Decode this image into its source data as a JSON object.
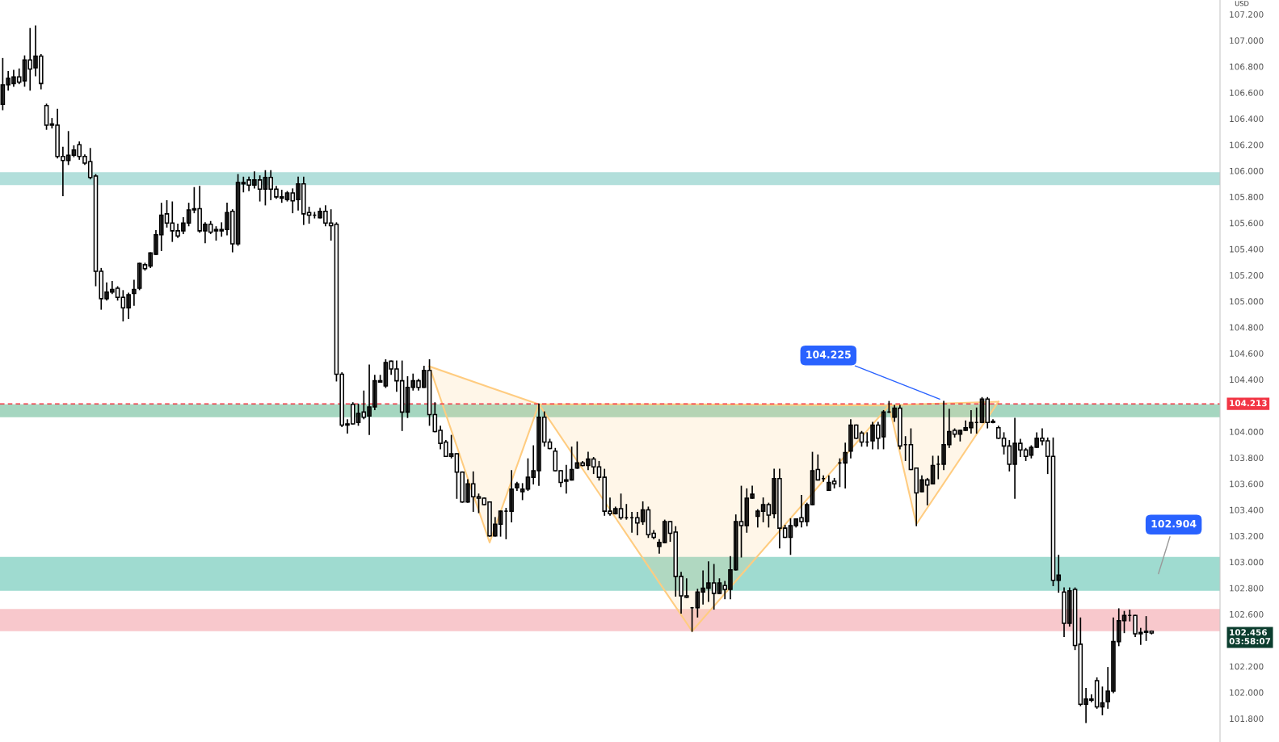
{
  "chart_data": {
    "type": "candlestick",
    "color": "#000000",
    "categories": [
      null,
      null,
      null,
      null,
      null,
      null,
      null,
      null,
      null,
      null,
      null,
      null,
      null,
      null,
      null,
      null,
      null,
      null,
      null,
      null,
      null,
      null,
      null,
      null,
      null,
      null,
      null,
      null,
      null,
      null,
      null,
      null,
      null,
      null,
      null,
      null,
      null,
      null,
      null,
      null,
      null,
      null,
      null,
      null,
      null,
      null,
      null,
      null,
      null,
      null,
      null,
      null,
      null,
      null,
      null,
      null,
      null,
      null,
      null,
      null,
      null,
      null,
      null,
      null,
      null,
      null,
      null,
      null,
      null,
      null,
      null,
      null,
      null,
      null,
      null,
      null,
      null,
      null,
      null,
      null,
      null,
      null,
      null,
      null,
      null,
      null,
      null,
      null,
      null,
      null,
      null,
      null,
      null,
      null,
      null,
      null,
      null,
      null,
      null,
      null,
      null,
      null,
      null,
      null,
      null,
      null,
      null,
      null,
      null,
      null,
      null,
      null,
      null,
      null,
      null,
      null,
      null,
      null,
      null,
      null,
      null,
      null,
      null,
      null,
      null,
      null,
      null,
      null,
      null,
      null,
      null,
      null,
      null,
      null,
      null,
      null,
      null,
      null,
      null,
      null,
      null,
      null,
      null,
      null,
      null,
      null,
      null,
      null,
      null,
      null,
      null,
      null,
      null,
      null,
      null,
      null,
      null,
      null,
      null,
      null,
      null,
      null,
      null,
      null,
      null,
      null,
      null,
      null,
      null,
      null,
      null,
      null,
      null,
      null,
      null,
      null,
      null,
      null,
      null,
      null,
      null,
      null,
      null,
      null,
      null,
      null,
      null,
      null,
      null,
      null,
      null,
      null,
      null,
      null,
      null,
      null,
      null,
      null,
      null,
      null,
      null,
      null,
      null,
      null,
      null,
      null,
      null,
      null,
      null,
      null,
      null,
      null,
      null,
      null,
      null,
      null,
      null,
      null,
      null,
      null,
      null,
      null,
      null
    ],
    "ohlc": [
      [
        106.51,
        106.86,
        106.47,
        106.66
      ],
      [
        106.66,
        106.76,
        106.62,
        106.71
      ],
      [
        106.67,
        106.77,
        106.65,
        106.72
      ],
      [
        106.72,
        106.78,
        106.67,
        106.68
      ],
      [
        106.69,
        106.88,
        106.65,
        106.85
      ],
      [
        106.85,
        107.09,
        106.62,
        106.78
      ],
      [
        106.79,
        107.11,
        106.73,
        106.88
      ],
      [
        106.88,
        106.89,
        106.63,
        106.67
      ],
      [
        106.5,
        106.51,
        106.32,
        106.35
      ],
      [
        106.36,
        106.4,
        106.33,
        106.35
      ],
      [
        106.35,
        106.47,
        106.1,
        106.11
      ],
      [
        106.11,
        106.18,
        105.81,
        106.08
      ],
      [
        106.08,
        106.3,
        106.05,
        106.12
      ],
      [
        106.12,
        106.19,
        106.11,
        106.16
      ],
      [
        106.2,
        106.22,
        106.09,
        106.11
      ],
      [
        106.11,
        106.12,
        106.05,
        106.06
      ],
      [
        106.07,
        106.17,
        105.94,
        105.95
      ],
      [
        105.96,
        105.97,
        105.12,
        105.23
      ],
      [
        105.23,
        105.25,
        104.94,
        105.02
      ],
      [
        105.02,
        105.14,
        105.01,
        105.07
      ],
      [
        105.07,
        105.15,
        105.06,
        105.09
      ],
      [
        105.1,
        105.11,
        105.01,
        105.03
      ],
      [
        105.03,
        105.08,
        104.85,
        104.95
      ],
      [
        104.95,
        105.06,
        104.87,
        105.05
      ],
      [
        105.06,
        105.16,
        104.97,
        105.09
      ],
      [
        105.1,
        105.29,
        105.09,
        105.29
      ],
      [
        105.28,
        105.29,
        105.24,
        105.25
      ],
      [
        105.27,
        105.37,
        105.26,
        105.37
      ],
      [
        105.36,
        105.54,
        105.36,
        105.51
      ],
      [
        105.51,
        105.75,
        105.39,
        105.66
      ],
      [
        105.67,
        105.77,
        105.57,
        105.6
      ],
      [
        105.6,
        105.76,
        105.46,
        105.54
      ],
      [
        105.54,
        105.59,
        105.49,
        105.5
      ],
      [
        105.54,
        105.64,
        105.52,
        105.6
      ],
      [
        105.6,
        105.75,
        105.58,
        105.7
      ],
      [
        105.7,
        105.87,
        105.68,
        105.71
      ],
      [
        105.71,
        105.88,
        105.53,
        105.54
      ],
      [
        105.54,
        105.6,
        105.45,
        105.59
      ],
      [
        105.59,
        105.61,
        105.52,
        105.53
      ],
      [
        105.55,
        105.57,
        105.47,
        105.54
      ],
      [
        105.54,
        105.6,
        105.5,
        105.55
      ],
      [
        105.55,
        105.75,
        105.51,
        105.68
      ],
      [
        105.69,
        105.7,
        105.38,
        105.44
      ],
      [
        105.44,
        105.97,
        105.43,
        105.91
      ],
      [
        105.91,
        105.95,
        105.84,
        105.9
      ],
      [
        105.93,
        105.95,
        105.85,
        105.89
      ],
      [
        105.89,
        105.99,
        105.87,
        105.93
      ],
      [
        105.93,
        105.96,
        105.77,
        105.86
      ],
      [
        105.86,
        106.0,
        105.74,
        105.95
      ],
      [
        105.95,
        106.0,
        105.78,
        105.86
      ],
      [
        105.86,
        105.88,
        105.79,
        105.8
      ],
      [
        105.8,
        105.85,
        105.76,
        105.79
      ],
      [
        105.78,
        105.84,
        105.77,
        105.83
      ],
      [
        105.83,
        105.86,
        105.68,
        105.77
      ],
      [
        105.78,
        105.95,
        105.7,
        105.9
      ],
      [
        105.9,
        105.95,
        105.59,
        105.67
      ],
      [
        105.68,
        105.72,
        105.6,
        105.66
      ],
      [
        105.66,
        105.68,
        105.64,
        105.66
      ],
      [
        105.64,
        105.71,
        105.64,
        105.69
      ],
      [
        105.69,
        105.73,
        105.58,
        105.6
      ],
      [
        105.6,
        105.7,
        105.47,
        105.58
      ],
      [
        105.59,
        105.6,
        104.39,
        104.44
      ],
      [
        104.44,
        104.45,
        104.04,
        104.05
      ],
      [
        104.05,
        104.09,
        103.99,
        104.06
      ],
      [
        104.21,
        104.22,
        104.06,
        104.06
      ],
      [
        104.07,
        104.21,
        104.05,
        104.14
      ],
      [
        104.15,
        104.31,
        104.1,
        104.11
      ],
      [
        104.12,
        104.51,
        103.98,
        104.19
      ],
      [
        104.19,
        104.43,
        104.17,
        104.39
      ],
      [
        104.39,
        104.43,
        104.38,
        104.38
      ],
      [
        104.35,
        104.55,
        104.34,
        104.53
      ],
      [
        104.54,
        104.54,
        104.44,
        104.48
      ],
      [
        104.48,
        104.54,
        104.31,
        104.39
      ],
      [
        104.39,
        104.54,
        104.01,
        104.15
      ],
      [
        104.15,
        104.42,
        104.11,
        104.34
      ],
      [
        104.34,
        104.44,
        104.32,
        104.39
      ],
      [
        104.39,
        104.4,
        104.32,
        104.34
      ],
      [
        104.34,
        104.5,
        104.34,
        104.47
      ],
      [
        104.47,
        104.55,
        104.05,
        104.13
      ],
      [
        104.13,
        104.22,
        104.0,
        104.0
      ],
      [
        104.01,
        104.04,
        103.87,
        103.91
      ],
      [
        103.92,
        103.93,
        103.81,
        103.81
      ],
      [
        103.81,
        103.97,
        103.8,
        103.83
      ],
      [
        103.83,
        103.83,
        103.49,
        103.69
      ],
      [
        103.69,
        103.69,
        103.46,
        103.46
      ],
      [
        103.46,
        103.63,
        103.46,
        103.6
      ],
      [
        103.6,
        103.69,
        103.39,
        103.5
      ],
      [
        103.5,
        103.52,
        103.38,
        103.49
      ],
      [
        103.49,
        103.49,
        103.44,
        103.44
      ],
      [
        103.46,
        103.46,
        103.2,
        103.2
      ],
      [
        103.2,
        103.34,
        103.2,
        103.29
      ],
      [
        103.29,
        103.39,
        103.2,
        103.39
      ],
      [
        103.39,
        103.41,
        103.18,
        103.39
      ],
      [
        103.39,
        103.7,
        103.31,
        103.56
      ],
      [
        103.57,
        103.61,
        103.55,
        103.6
      ],
      [
        103.54,
        103.6,
        103.48,
        103.56
      ],
      [
        103.56,
        103.79,
        103.55,
        103.65
      ],
      [
        103.65,
        103.89,
        103.6,
        103.7
      ],
      [
        103.7,
        104.21,
        103.59,
        104.11
      ],
      [
        104.11,
        104.15,
        103.89,
        103.92
      ],
      [
        103.92,
        103.94,
        103.87,
        103.87
      ],
      [
        103.85,
        103.87,
        103.7,
        103.7
      ],
      [
        103.7,
        103.7,
        103.58,
        103.61
      ],
      [
        103.62,
        103.74,
        103.53,
        103.63
      ],
      [
        103.63,
        103.88,
        103.63,
        103.71
      ],
      [
        103.72,
        103.92,
        103.72,
        103.76
      ],
      [
        103.76,
        103.77,
        103.74,
        103.74
      ],
      [
        103.74,
        103.84,
        103.71,
        103.79
      ],
      [
        103.79,
        103.8,
        103.68,
        103.73
      ],
      [
        103.73,
        103.77,
        103.63,
        103.65
      ],
      [
        103.65,
        103.71,
        103.36,
        103.39
      ],
      [
        103.39,
        103.49,
        103.36,
        103.37
      ],
      [
        103.37,
        103.42,
        103.37,
        103.41
      ],
      [
        103.41,
        103.52,
        103.33,
        103.34
      ],
      [
        103.34,
        103.44,
        103.33,
        103.34
      ],
      [
        103.34,
        103.38,
        103.23,
        103.34
      ],
      [
        103.34,
        103.38,
        103.21,
        103.3
      ],
      [
        103.31,
        103.46,
        103.29,
        103.4
      ],
      [
        103.4,
        103.42,
        103.19,
        103.21
      ],
      [
        103.22,
        103.24,
        103.18,
        103.19
      ],
      [
        103.12,
        103.17,
        103.07,
        103.15
      ],
      [
        103.15,
        103.32,
        103.15,
        103.31
      ],
      [
        103.31,
        103.31,
        103.16,
        103.22
      ],
      [
        103.23,
        103.27,
        102.74,
        102.89
      ],
      [
        102.89,
        102.92,
        102.61,
        102.74
      ],
      [
        102.74,
        102.87,
        102.73,
        102.73
      ],
      [
        102.65,
        102.65,
        102.47,
        102.65
      ],
      [
        102.65,
        102.79,
        102.58,
        102.77
      ],
      [
        102.77,
        102.93,
        102.68,
        102.8
      ],
      [
        102.8,
        103.0,
        102.7,
        102.84
      ],
      [
        102.84,
        102.98,
        102.64,
        102.76
      ],
      [
        102.76,
        102.87,
        102.76,
        102.84
      ],
      [
        102.82,
        102.85,
        102.72,
        102.79
      ],
      [
        102.79,
        103.04,
        102.72,
        102.94
      ],
      [
        102.94,
        103.36,
        102.94,
        103.31
      ],
      [
        103.31,
        103.58,
        103.04,
        103.28
      ],
      [
        103.28,
        103.56,
        103.23,
        103.49
      ],
      [
        103.49,
        103.58,
        103.49,
        103.52
      ],
      [
        103.35,
        103.4,
        103.27,
        103.39
      ],
      [
        103.39,
        103.49,
        103.31,
        103.44
      ],
      [
        103.44,
        103.45,
        103.27,
        103.36
      ],
      [
        103.37,
        103.71,
        103.34,
        103.64
      ],
      [
        103.64,
        103.71,
        103.11,
        103.26
      ],
      [
        103.26,
        103.28,
        103.19,
        103.19
      ],
      [
        103.19,
        103.33,
        103.06,
        103.28
      ],
      [
        103.28,
        103.33,
        103.27,
        103.33
      ],
      [
        103.34,
        103.51,
        103.27,
        103.31
      ],
      [
        103.31,
        103.45,
        103.28,
        103.44
      ],
      [
        103.44,
        103.84,
        103.44,
        103.7
      ],
      [
        103.71,
        103.82,
        103.63,
        103.63
      ],
      [
        103.64,
        103.66,
        103.62,
        103.64
      ],
      [
        103.55,
        103.66,
        103.55,
        103.61
      ],
      [
        103.62,
        103.64,
        103.57,
        103.6
      ],
      [
        103.76,
        103.79,
        103.58,
        103.76
      ],
      [
        103.76,
        103.91,
        103.57,
        103.84
      ],
      [
        103.85,
        104.09,
        103.8,
        104.05
      ],
      [
        104.05,
        104.05,
        103.95,
        103.95
      ],
      [
        103.99,
        104.0,
        103.89,
        103.92
      ],
      [
        103.92,
        103.99,
        103.89,
        103.92
      ],
      [
        103.93,
        104.07,
        103.87,
        104.05
      ],
      [
        104.05,
        104.07,
        103.87,
        103.95
      ],
      [
        103.96,
        104.16,
        103.87,
        104.15
      ],
      [
        104.15,
        104.23,
        104.15,
        104.15
      ],
      [
        104.11,
        104.2,
        104.08,
        104.18
      ],
      [
        104.18,
        104.2,
        103.87,
        103.89
      ],
      [
        103.9,
        103.96,
        103.78,
        103.9
      ],
      [
        103.9,
        104.02,
        103.71,
        103.71
      ],
      [
        103.72,
        103.72,
        103.28,
        103.53
      ],
      [
        103.54,
        103.66,
        103.54,
        103.63
      ],
      [
        103.63,
        103.64,
        103.44,
        103.59
      ],
      [
        103.6,
        103.81,
        103.6,
        103.74
      ],
      [
        103.75,
        103.81,
        103.64,
        103.75
      ],
      [
        103.75,
        104.23,
        103.71,
        103.9
      ],
      [
        103.9,
        104.17,
        103.88,
        104.0
      ],
      [
        104.01,
        104.02,
        103.96,
        103.98
      ],
      [
        103.98,
        104.01,
        103.93,
        104.01
      ],
      [
        104.01,
        104.08,
        104.01,
        104.03
      ],
      [
        104.03,
        104.16,
        103.99,
        104.07
      ],
      [
        104.07,
        104.18,
        103.99,
        104.07
      ],
      [
        104.07,
        104.26,
        104.07,
        104.25
      ],
      [
        104.25,
        104.26,
        104.03,
        104.07
      ],
      [
        104.07,
        104.09,
        104.07,
        104.08
      ],
      [
        104.03,
        104.04,
        103.95,
        103.95
      ],
      [
        103.95,
        103.99,
        103.83,
        103.89
      ],
      [
        103.89,
        103.93,
        103.7,
        103.75
      ],
      [
        103.75,
        104.1,
        103.49,
        103.91
      ],
      [
        103.91,
        103.94,
        103.81,
        103.86
      ],
      [
        103.86,
        103.87,
        103.78,
        103.81
      ],
      [
        103.82,
        103.89,
        103.8,
        103.88
      ],
      [
        103.88,
        103.99,
        103.88,
        103.95
      ],
      [
        103.95,
        104.02,
        103.9,
        103.93
      ],
      [
        103.93,
        103.95,
        103.68,
        103.81
      ],
      [
        103.81,
        103.95,
        102.82,
        102.86
      ],
      [
        102.86,
        103.05,
        102.77,
        102.9
      ],
      [
        102.77,
        102.8,
        102.43,
        102.53
      ],
      [
        102.53,
        102.8,
        102.51,
        102.78
      ],
      [
        102.79,
        102.8,
        102.33,
        102.36
      ],
      [
        102.37,
        102.57,
        101.9,
        101.91
      ],
      [
        101.91,
        102.03,
        101.77,
        101.95
      ],
      [
        101.95,
        101.98,
        101.93,
        101.94
      ],
      [
        102.09,
        102.11,
        101.88,
        101.89
      ],
      [
        101.89,
        102.04,
        101.83,
        101.92
      ],
      [
        101.93,
        102.19,
        101.88,
        102.01
      ],
      [
        102.01,
        102.57,
        102.0,
        102.39
      ],
      [
        102.39,
        102.64,
        102.36,
        102.55
      ],
      [
        102.55,
        102.62,
        102.46,
        102.59
      ],
      [
        102.59,
        102.63,
        102.55,
        102.59
      ],
      [
        102.59,
        102.59,
        102.43,
        102.45
      ],
      [
        102.45,
        102.49,
        102.37,
        102.46
      ],
      [
        102.47,
        102.58,
        102.4,
        102.46
      ],
      [
        102.47,
        102.47,
        102.45,
        102.456
      ],
      null,
      null,
      null,
      null,
      null,
      null,
      null,
      null,
      null,
      null,
      null,
      null
    ],
    "series": [
      {
        "type": "line",
        "color": "#ffcc80",
        "values": [
          null,
          null,
          null,
          null,
          null,
          null,
          null,
          null,
          null,
          null,
          null,
          null,
          null,
          null,
          null,
          null,
          null,
          null,
          null,
          null,
          null,
          null,
          null,
          null,
          null,
          null,
          null,
          null,
          null,
          null,
          null,
          null,
          null,
          null,
          null,
          null,
          null,
          null,
          null,
          null,
          null,
          null,
          null,
          null,
          null,
          null,
          null,
          null,
          null,
          null,
          null,
          null,
          null,
          null,
          null,
          null,
          null,
          null,
          null,
          null,
          null,
          null,
          null,
          null,
          null,
          null,
          null,
          null,
          null,
          null,
          null,
          null,
          null,
          null,
          null,
          null,
          null,
          null,
          104.5,
          null,
          null,
          null,
          null,
          null,
          null,
          null,
          null,
          null,
          null,
          103.15,
          null,
          null,
          null,
          null,
          null,
          null,
          null,
          null,
          104.21,
          null,
          null,
          null,
          null,
          null,
          null,
          null,
          null,
          null,
          null,
          null,
          null,
          null,
          null,
          null,
          null,
          null,
          null,
          null,
          null,
          null,
          null,
          null,
          null,
          null,
          null,
          null,
          102.47,
          null,
          null,
          null,
          null,
          null,
          null,
          null,
          null,
          null,
          null,
          null,
          null,
          null,
          null,
          null,
          null,
          null,
          null,
          null,
          null,
          null,
          null,
          null,
          null,
          null,
          null,
          null,
          null,
          null,
          null,
          null,
          null,
          null,
          null,
          null,
          104.2,
          null,
          null,
          null,
          null,
          103.29,
          null,
          null,
          null,
          null,
          null,
          null,
          null,
          null,
          null,
          null,
          null,
          null,
          null,
          null,
          104.23,
          null,
          null,
          null,
          null,
          null,
          null,
          null,
          null,
          null,
          null,
          null,
          null,
          null,
          null,
          null,
          null,
          null,
          null,
          null,
          null,
          null,
          null,
          null,
          null,
          null,
          null,
          null,
          null,
          null,
          null,
          null,
          null,
          null,
          null,
          null,
          null,
          null,
          null,
          null,
          null
        ],
        "lower": [
          null,
          null,
          null,
          null,
          null,
          null,
          null,
          null,
          null,
          null,
          null,
          null,
          null,
          null,
          null,
          null,
          null,
          null,
          null,
          null,
          null,
          null,
          null,
          null,
          null,
          null,
          null,
          null,
          null,
          null,
          null,
          null,
          null,
          null,
          null,
          null,
          null,
          null,
          null,
          null,
          null,
          null,
          null,
          null,
          null,
          null,
          null,
          null,
          null,
          null,
          null,
          null,
          null,
          null,
          null,
          null,
          null,
          null,
          null,
          null,
          null,
          null,
          null,
          null,
          null,
          null,
          null,
          null,
          null,
          null,
          null,
          null,
          null,
          null,
          null,
          null,
          null,
          null,
          104.5,
          null,
          null,
          null,
          null,
          null,
          null,
          null,
          null,
          null,
          null,
          103.15,
          null,
          null,
          null,
          null,
          null,
          null,
          null,
          null,
          104.21,
          null,
          null,
          null,
          null,
          null,
          null,
          null,
          null,
          null,
          null,
          null,
          null,
          null,
          null,
          null,
          null,
          null,
          null,
          null,
          null,
          null,
          null,
          null,
          null,
          null,
          null,
          null,
          102.47,
          null,
          null,
          null,
          null,
          null,
          null,
          null,
          null,
          null,
          null,
          null,
          null,
          null,
          null,
          null,
          null,
          null,
          null,
          null,
          null,
          null,
          null,
          null,
          null,
          null,
          null,
          null,
          null,
          null,
          null,
          null,
          null,
          null,
          null,
          null,
          104.2,
          null,
          null,
          null,
          null,
          103.29,
          null,
          null,
          null,
          null,
          null,
          null,
          null,
          null,
          null,
          null,
          null,
          null,
          null,
          null,
          104.23,
          null,
          null,
          null,
          null,
          null,
          null,
          null,
          null,
          null,
          null,
          null,
          null,
          null,
          null,
          null,
          null,
          null,
          null,
          null,
          null,
          null,
          null,
          null,
          null,
          null,
          null,
          null,
          null,
          null,
          null,
          null,
          null,
          null,
          null,
          null,
          null,
          null,
          null,
          null,
          null
        ],
        "upper": [
          null,
          null,
          null,
          null,
          null,
          null,
          null,
          null,
          null,
          null,
          null,
          null,
          null,
          null,
          null,
          null,
          null,
          null,
          null,
          null,
          null,
          null,
          null,
          null,
          null,
          null,
          null,
          null,
          null,
          null,
          null,
          null,
          null,
          null,
          null,
          null,
          null,
          null,
          null,
          null,
          null,
          null,
          null,
          null,
          null,
          null,
          null,
          null,
          null,
          null,
          null,
          null,
          null,
          null,
          null,
          null,
          null,
          null,
          null,
          null,
          null,
          null,
          null,
          null,
          null,
          null,
          null,
          null,
          null,
          null,
          null,
          null,
          null,
          null,
          null,
          null,
          null,
          null,
          104.5,
          null,
          null,
          null,
          null,
          null,
          null,
          null,
          null,
          null,
          null,
          104.34,
          null,
          null,
          null,
          null,
          null,
          null,
          null,
          null,
          104.21,
          null,
          null,
          null,
          null,
          null,
          null,
          null,
          null,
          null,
          null,
          null,
          null,
          null,
          null,
          null,
          null,
          null,
          null,
          null,
          null,
          null,
          null,
          null,
          null,
          null,
          null,
          null,
          104.21,
          null,
          null,
          null,
          null,
          null,
          null,
          null,
          null,
          null,
          null,
          null,
          null,
          null,
          null,
          null,
          null,
          null,
          null,
          null,
          null,
          null,
          null,
          null,
          null,
          null,
          null,
          null,
          null,
          null,
          null,
          null,
          null,
          null,
          null,
          null,
          104.2,
          null,
          null,
          null,
          null,
          104.21,
          null,
          null,
          null,
          null,
          null,
          null,
          null,
          null,
          null,
          null,
          null,
          null,
          null,
          null,
          104.23,
          null,
          null,
          null,
          null,
          null,
          null,
          null,
          null,
          null,
          null,
          null,
          null,
          null,
          null,
          null,
          null,
          null,
          null,
          null,
          null,
          null,
          null,
          null,
          null,
          null,
          null,
          null,
          null,
          null,
          null,
          null,
          null,
          null,
          null,
          null,
          null,
          null,
          null,
          null,
          null
        ]
      },
      {
        "type": "line",
        "color": "#ffcc80",
        "values": [
          null,
          null,
          null,
          null,
          null,
          null,
          null,
          null,
          null,
          null,
          null,
          null,
          null,
          null,
          null,
          null,
          null,
          null,
          null,
          null,
          null,
          null,
          null,
          null,
          null,
          null,
          null,
          null,
          null,
          null,
          null,
          null,
          null,
          null,
          null,
          null,
          null,
          null,
          null,
          null,
          null,
          null,
          null,
          null,
          null,
          null,
          null,
          null,
          null,
          null,
          null,
          null,
          null,
          null,
          null,
          null,
          null,
          null,
          null,
          null,
          null,
          null,
          null,
          null,
          null,
          null,
          null,
          null,
          null,
          null,
          null,
          null,
          null,
          null,
          null,
          null,
          null,
          null,
          104.5,
          null,
          null,
          null,
          null,
          null,
          null,
          null,
          null,
          null,
          null,
          104.34,
          null,
          null,
          null,
          null,
          null,
          null,
          null,
          null,
          104.21,
          null,
          null,
          null,
          null,
          null,
          null,
          null,
          null,
          null,
          null,
          null,
          null,
          null,
          null,
          null,
          null,
          null,
          null,
          null,
          null,
          null,
          null,
          null,
          null,
          null,
          null,
          null,
          104.21,
          null,
          null,
          null,
          null,
          null,
          null,
          null,
          null,
          null,
          null,
          null,
          null,
          null,
          null,
          null,
          null,
          null,
          null,
          null,
          null,
          null,
          null,
          null,
          null,
          null,
          null,
          null,
          null,
          null,
          null,
          null,
          null,
          null,
          null,
          null,
          104.2,
          null,
          null,
          null,
          null,
          104.21,
          null,
          null,
          null,
          null,
          null,
          null,
          null,
          null,
          null,
          null,
          null,
          null,
          null,
          null,
          104.23,
          null,
          null,
          null,
          null,
          null,
          null,
          null,
          null,
          null,
          null,
          null,
          null,
          null,
          null,
          null,
          null,
          null,
          null,
          null,
          null,
          null,
          null,
          null,
          null,
          null,
          null,
          null,
          null,
          null,
          null,
          null,
          null,
          null,
          null,
          null,
          null,
          null,
          null,
          null,
          null
        ]
      }
    ],
    "bands": [
      {
        "axis": "y",
        "from": 105.89,
        "to": 105.99,
        "color": "#b2dfdb"
      },
      {
        "axis": "y",
        "from": 104.11,
        "to": 104.21,
        "color": "#a5d6c0"
      },
      {
        "axis": "y",
        "from": 102.47,
        "to": 102.64,
        "color": "#f8c8cc"
      },
      {
        "axis": "y",
        "from": 102.78,
        "to": 103.04,
        "color": "#9fdbd0"
      }
    ],
    "ref_lines": [
      {
        "axis": "y",
        "value": 104.213,
        "label": "104.213",
        "color": "#f23645",
        "line_style": "dashed"
      }
    ],
    "annotations": [
      "104.225",
      "102.904",
      "102.456\n03:58:07",
      "USD"
    ],
    "ylim": [
      101.62,
      107.31
    ],
    "yticks": [
      {
        "value": 101.8,
        "label": "101.800"
      },
      {
        "value": 102.0,
        "label": "102.000"
      },
      {
        "value": 102.2,
        "label": "102.200"
      },
      {
        "value": 102.6,
        "label": "102.600"
      },
      {
        "value": 102.8,
        "label": "102.800"
      },
      {
        "value": 103.0,
        "label": "103.000"
      },
      {
        "value": 103.2,
        "label": "103.200"
      },
      {
        "value": 103.4,
        "label": "103.400"
      },
      {
        "value": 103.6,
        "label": "103.600"
      },
      {
        "value": 103.8,
        "label": "103.800"
      },
      {
        "value": 104.0,
        "label": "104.000"
      },
      {
        "value": 104.4,
        "label": "104.400"
      },
      {
        "value": 104.6,
        "label": "104.600"
      },
      {
        "value": 104.8,
        "label": "104.800"
      },
      {
        "value": 105.0,
        "label": "105.000"
      },
      {
        "value": 105.2,
        "label": "105.200"
      },
      {
        "value": 105.4,
        "label": "105.400"
      },
      {
        "value": 105.6,
        "label": "105.600"
      },
      {
        "value": 105.8,
        "label": "105.800"
      },
      {
        "value": 106.0,
        "label": "106.000"
      },
      {
        "value": 106.2,
        "label": "106.200"
      },
      {
        "value": 106.4,
        "label": "106.400"
      },
      {
        "value": 106.6,
        "label": "106.600"
      },
      {
        "value": 106.8,
        "label": "106.800"
      },
      {
        "value": 107.0,
        "label": "107.000"
      },
      {
        "value": 107.2,
        "label": "107.200"
      }
    ],
    "tick_labels": "y"
  }
}
